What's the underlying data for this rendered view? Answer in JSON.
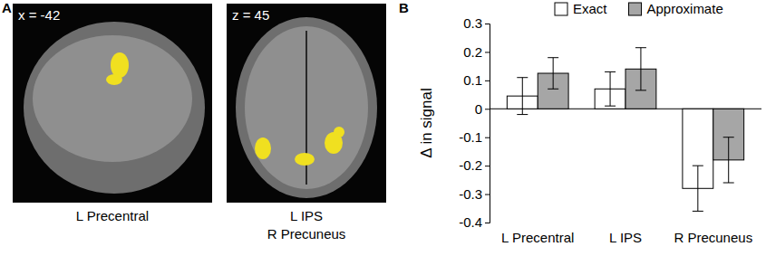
{
  "panels": {
    "a": {
      "label": "A",
      "images": [
        {
          "coord": "x = -42",
          "caption": [
            "L Precentral"
          ]
        },
        {
          "coord": "z = 45",
          "caption": [
            "L IPS",
            "R Precuneus"
          ]
        }
      ]
    },
    "b": {
      "label": "B"
    }
  },
  "chart_data": {
    "type": "bar",
    "y_label": "Δ in signal",
    "categories": [
      "L Precentral",
      "L IPS",
      "R Precuneus"
    ],
    "series": [
      {
        "name": "Exact",
        "color": "#ffffff",
        "values": [
          0.045,
          0.07,
          -0.28
        ],
        "errors": [
          0.065,
          0.06,
          0.08
        ]
      },
      {
        "name": "Approximate",
        "color": "#a6a6a6",
        "values": [
          0.125,
          0.14,
          -0.18
        ],
        "errors": [
          0.055,
          0.075,
          0.08
        ]
      }
    ],
    "ylim": [
      -0.4,
      0.3
    ],
    "yticks": [
      -0.4,
      -0.3,
      -0.2,
      -0.1,
      0,
      0.1,
      0.2,
      0.3
    ],
    "grid": false,
    "legend": "top"
  }
}
